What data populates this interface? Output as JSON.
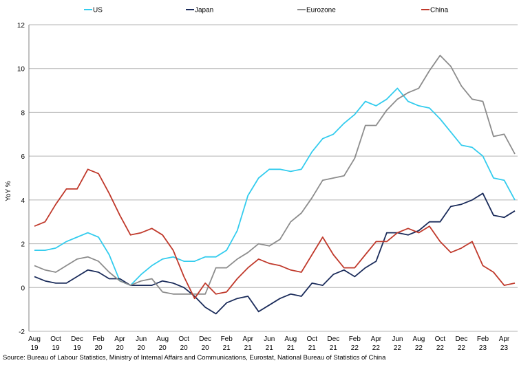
{
  "chart_data": {
    "type": "line",
    "ylabel": "YoY %",
    "ylim": [
      -2,
      12
    ],
    "yticks": [
      -2,
      0,
      2,
      4,
      6,
      8,
      10,
      12
    ],
    "grid": "horizontal",
    "legend": "top",
    "x_tick_labels": [
      [
        "Aug",
        "19"
      ],
      [
        "Oct",
        "19"
      ],
      [
        "Dec",
        "19"
      ],
      [
        "Feb",
        "20"
      ],
      [
        "Apr",
        "20"
      ],
      [
        "Jun",
        "20"
      ],
      [
        "Aug",
        "20"
      ],
      [
        "Oct",
        "20"
      ],
      [
        "Dec",
        "20"
      ],
      [
        "Feb",
        "21"
      ],
      [
        "Apr",
        "21"
      ],
      [
        "Jun",
        "21"
      ],
      [
        "Aug",
        "21"
      ],
      [
        "Oct",
        "21"
      ],
      [
        "Dec",
        "21"
      ],
      [
        "Feb",
        "22"
      ],
      [
        "Apr",
        "22"
      ],
      [
        "Jun",
        "22"
      ],
      [
        "Aug",
        "22"
      ],
      [
        "Oct",
        "22"
      ],
      [
        "Dec",
        "22"
      ],
      [
        "Feb",
        "23"
      ],
      [
        "Apr",
        "23"
      ]
    ],
    "x": [
      "2019-08",
      "2019-09",
      "2019-10",
      "2019-11",
      "2019-12",
      "2020-01",
      "2020-02",
      "2020-03",
      "2020-04",
      "2020-05",
      "2020-06",
      "2020-07",
      "2020-08",
      "2020-09",
      "2020-10",
      "2020-11",
      "2020-12",
      "2021-01",
      "2021-02",
      "2021-03",
      "2021-04",
      "2021-05",
      "2021-06",
      "2021-07",
      "2021-08",
      "2021-09",
      "2021-10",
      "2021-11",
      "2021-12",
      "2022-01",
      "2022-02",
      "2022-03",
      "2022-04",
      "2022-05",
      "2022-06",
      "2022-07",
      "2022-08",
      "2022-09",
      "2022-10",
      "2022-11",
      "2022-12",
      "2023-01",
      "2023-02",
      "2023-03",
      "2023-04",
      "2023-05"
    ],
    "series": [
      {
        "name": "US",
        "color": "#33ccee",
        "values": [
          1.7,
          1.7,
          1.8,
          2.1,
          2.3,
          2.5,
          2.3,
          1.5,
          0.3,
          0.1,
          0.6,
          1.0,
          1.3,
          1.4,
          1.2,
          1.2,
          1.4,
          1.4,
          1.7,
          2.6,
          4.2,
          5.0,
          5.4,
          5.4,
          5.3,
          5.4,
          6.2,
          6.8,
          7.0,
          7.5,
          7.9,
          8.5,
          8.3,
          8.6,
          9.1,
          8.5,
          8.3,
          8.2,
          7.7,
          7.1,
          6.5,
          6.4,
          6.0,
          5.0,
          4.9,
          4.0
        ]
      },
      {
        "name": "Japan",
        "color": "#1a2b5a",
        "values": [
          0.5,
          0.3,
          0.2,
          0.2,
          0.5,
          0.8,
          0.7,
          0.4,
          0.4,
          0.1,
          0.1,
          0.1,
          0.3,
          0.2,
          0.0,
          -0.4,
          -0.9,
          -1.2,
          -0.7,
          -0.5,
          -0.4,
          -1.1,
          -0.8,
          -0.5,
          -0.3,
          -0.4,
          0.2,
          0.1,
          0.6,
          0.8,
          0.5,
          0.9,
          1.2,
          2.5,
          2.5,
          2.4,
          2.6,
          3.0,
          3.0,
          3.7,
          3.8,
          4.0,
          4.3,
          3.3,
          3.2,
          3.5
        ]
      },
      {
        "name": "Eurozone",
        "color": "#8c8c8c",
        "values": [
          1.0,
          0.8,
          0.7,
          1.0,
          1.3,
          1.4,
          1.2,
          0.7,
          0.3,
          0.1,
          0.3,
          0.4,
          -0.2,
          -0.3,
          -0.3,
          -0.3,
          -0.3,
          0.9,
          0.9,
          1.3,
          1.6,
          2.0,
          1.9,
          2.2,
          3.0,
          3.4,
          4.1,
          4.9,
          5.0,
          5.1,
          5.9,
          7.4,
          7.4,
          8.1,
          8.6,
          8.9,
          9.1,
          9.9,
          10.6,
          10.1,
          9.2,
          8.6,
          8.5,
          6.9,
          7.0,
          6.1
        ]
      },
      {
        "name": "China",
        "color": "#c0392b",
        "values": [
          2.8,
          3.0,
          3.8,
          4.5,
          4.5,
          5.4,
          5.2,
          4.3,
          3.3,
          2.4,
          2.5,
          2.7,
          2.4,
          1.7,
          0.5,
          -0.5,
          0.2,
          -0.3,
          -0.2,
          0.4,
          0.9,
          1.3,
          1.1,
          1.0,
          0.8,
          0.7,
          1.5,
          2.3,
          1.5,
          0.9,
          0.9,
          1.5,
          2.1,
          2.1,
          2.5,
          2.7,
          2.5,
          2.8,
          2.1,
          1.6,
          1.8,
          2.1,
          1.0,
          0.7,
          0.1,
          0.2
        ]
      }
    ]
  },
  "source_text": "Source: Bureau of Labour Statistics, Ministry of Internal Affairs and Communications, Eurostat, National Bureau of Statistics of China"
}
